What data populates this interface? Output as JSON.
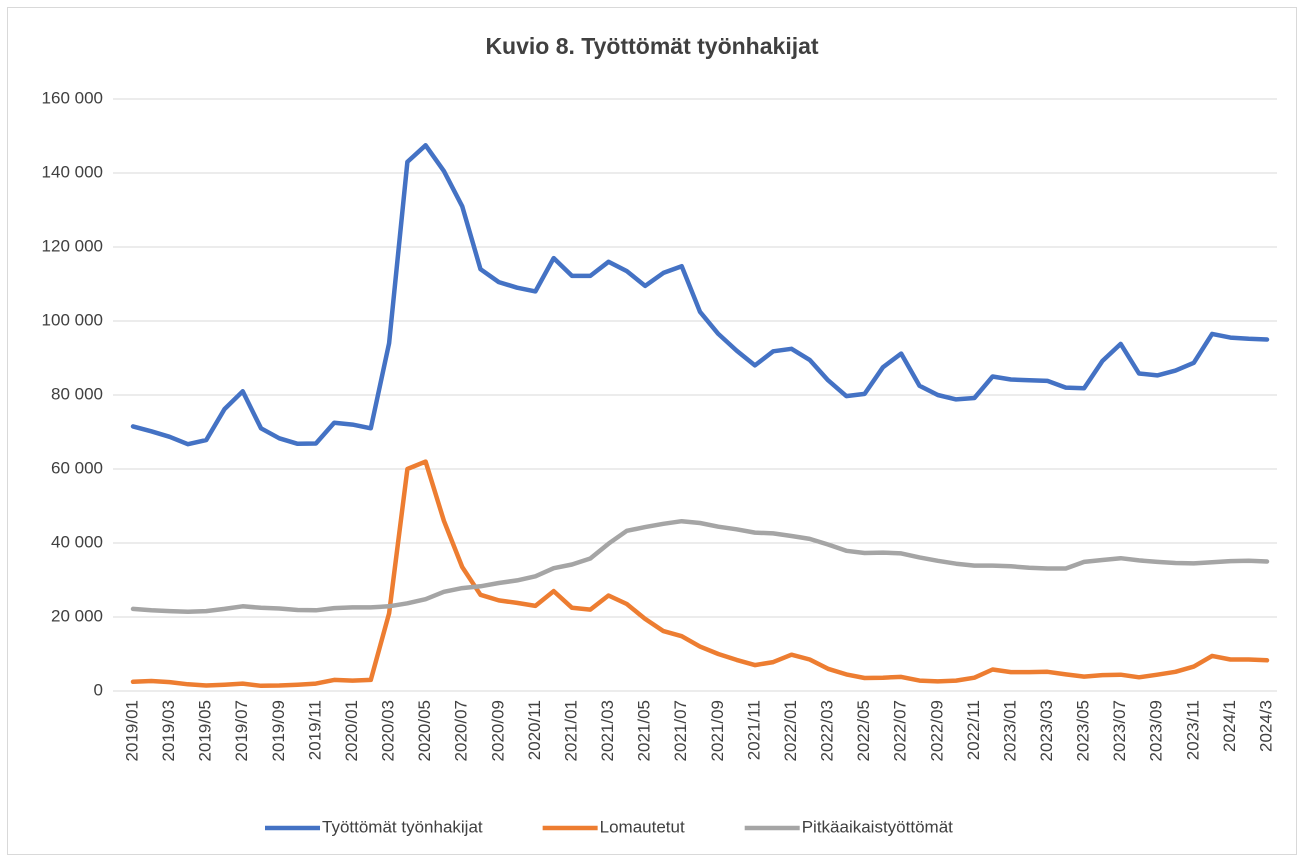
{
  "chart_data": {
    "type": "line",
    "title": "Kuvio 8. Työttömät työnhakijat",
    "categories": [
      "2019/01",
      null,
      "2019/03",
      null,
      "2019/05",
      null,
      "2019/07",
      null,
      "2019/09",
      null,
      "2019/11",
      null,
      "2020/01",
      null,
      "2020/03",
      null,
      "2020/05",
      null,
      "2020/07",
      null,
      "2020/09",
      null,
      "2020/11",
      null,
      "2021/01",
      null,
      "2021/03",
      null,
      "2021/05",
      null,
      "2021/07",
      null,
      "2021/09",
      null,
      "2021/11",
      null,
      "2022/01",
      null,
      "2022/03",
      null,
      "2022/05",
      null,
      "2022/07",
      null,
      "2022/09",
      null,
      "2022/11",
      null,
      "2023/01",
      null,
      "2023/03",
      null,
      "2023/05",
      null,
      "2023/07",
      null,
      "2023/09",
      null,
      "2023/11",
      null,
      "2024/1",
      null,
      "2024/3"
    ],
    "series": [
      {
        "name": "Työttömät työnhakijat",
        "color": "#4472c4",
        "values": [
          71500,
          70200,
          68700,
          66700,
          67800,
          76200,
          81000,
          71000,
          68300,
          66800,
          66900,
          72500,
          72000,
          71000,
          94000,
          143000,
          147500,
          140500,
          131000,
          114000,
          110500,
          109000,
          108000,
          117000,
          112200,
          112200,
          116000,
          113500,
          109500,
          113000,
          114800,
          102500,
          96500,
          92000,
          88000,
          91800,
          92500,
          89500,
          84000,
          79700,
          80300,
          87500,
          91200,
          82500,
          80000,
          78800,
          79200,
          85000,
          84200,
          84000,
          83800,
          82000,
          81800,
          89200,
          93800,
          85800,
          85300,
          86600,
          88700,
          96500,
          95500,
          95200,
          95000
        ]
      },
      {
        "name": "Lomautetut",
        "color": "#ed7d31",
        "values": [
          2500,
          2700,
          2400,
          1800,
          1500,
          1700,
          2000,
          1400,
          1500,
          1700,
          2000,
          3000,
          2800,
          3000,
          21000,
          60000,
          62000,
          46000,
          33500,
          26000,
          24500,
          23800,
          23000,
          27000,
          22500,
          22000,
          25800,
          23500,
          19500,
          16200,
          14800,
          12000,
          10000,
          8400,
          7000,
          7800,
          9800,
          8500,
          6000,
          4500,
          3500,
          3600,
          3800,
          2800,
          2600,
          2800,
          3600,
          5800,
          5100,
          5100,
          5200,
          4500,
          3900,
          4300,
          4400,
          3700,
          4400,
          5200,
          6600,
          9500,
          8500,
          8500,
          8300
        ]
      },
      {
        "name": "Pitkäaikaistyöttömät",
        "color": "#a5a5a5",
        "values": [
          22200,
          21800,
          21600,
          21400,
          21600,
          22200,
          22900,
          22500,
          22300,
          21900,
          21800,
          22400,
          22600,
          22600,
          22900,
          23700,
          24800,
          26800,
          27800,
          28300,
          29200,
          29900,
          31000,
          33200,
          34200,
          35800,
          39800,
          43300,
          44300,
          45200,
          45900,
          45400,
          44400,
          43700,
          42800,
          42600,
          41900,
          41100,
          39600,
          37900,
          37300,
          37400,
          37200,
          36100,
          35200,
          34400,
          33900,
          33900,
          33700,
          33300,
          33100,
          33100,
          34900,
          35400,
          35900,
          35300,
          34900,
          34600,
          34500,
          34800,
          35100,
          35200,
          35000
        ]
      }
    ],
    "ylim": [
      0,
      160000
    ],
    "yticks": [
      0,
      {
        "value": 20000,
        "label": "20 000"
      },
      {
        "value": 40000,
        "label": "40 000"
      },
      {
        "value": 60000,
        "label": "60 000"
      },
      {
        "value": 80000,
        "label": "80 000"
      },
      {
        "value": 100000,
        "label": "100 000"
      },
      {
        "value": 120000,
        "label": "120 000"
      },
      {
        "value": 140000,
        "label": "140 000"
      },
      {
        "value": 160000,
        "label": "160 000"
      }
    ],
    "grid": true,
    "legend": "bottom"
  }
}
